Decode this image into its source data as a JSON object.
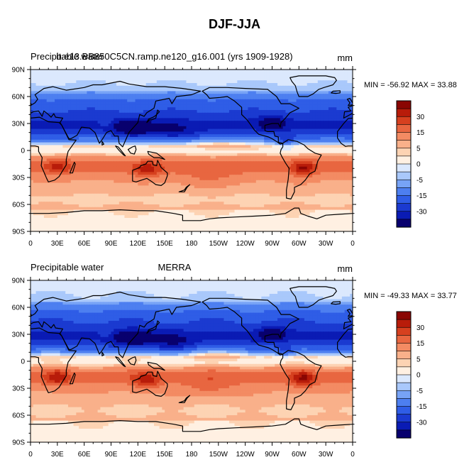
{
  "title": "DJF-JJA",
  "colors": {
    "levels": [
      -30,
      -25,
      -20,
      -15,
      -10,
      -5,
      -2.5,
      0,
      2.5,
      5,
      10,
      15,
      20,
      25,
      30,
      35
    ],
    "palette": [
      "#08006e",
      "#0a1bb4",
      "#1b3ad0",
      "#2f5de6",
      "#4d7ff0",
      "#77a3f6",
      "#a9c8fb",
      "#dbe8fd",
      "#fff0e2",
      "#fdd3b3",
      "#f9b08a",
      "#f38b63",
      "#e86640",
      "#d6401f",
      "#b81c0a",
      "#8a0603"
    ],
    "coast": "#000000"
  },
  "chart_data": [
    {
      "type": "heatmap",
      "panel": "top",
      "title_left": "Precipitable water",
      "title_center": "b.e13.BB850C5CN.ramp.ne120_g16.001 (yrs 1909-1928)",
      "title_right": "mm",
      "stats": "MIN = -56.92 MAX =  33.88",
      "min": -56.92,
      "max": 33.88,
      "xticks": [
        "0",
        "30E",
        "60E",
        "90E",
        "120E",
        "150E",
        "180",
        "150W",
        "120W",
        "90W",
        "60W",
        "30W",
        "0"
      ],
      "yticks": [
        "90N",
        "60N",
        "30N",
        "0",
        "30S",
        "60S",
        "90S"
      ],
      "xlim": [
        0,
        360
      ],
      "ylim": [
        -90,
        90
      ],
      "colorbar_labels": [
        "30",
        "15",
        "5",
        "0",
        "-5",
        "-15",
        "-30"
      ]
    },
    {
      "type": "heatmap",
      "panel": "bottom",
      "title_left": "Precipitable water",
      "title_center": "MERRA",
      "title_right": "mm",
      "stats": "MIN = -49.33 MAX =  33.77",
      "min": -49.33,
      "max": 33.77,
      "xticks": [
        "0",
        "30E",
        "60E",
        "90E",
        "120E",
        "150E",
        "180",
        "150W",
        "120W",
        "90W",
        "60W",
        "30W",
        "0"
      ],
      "yticks": [
        "90N",
        "60N",
        "30N",
        "0",
        "30S",
        "60S",
        "90S"
      ],
      "xlim": [
        0,
        360
      ],
      "ylim": [
        -90,
        90
      ],
      "colorbar_labels": [
        "30",
        "15",
        "5",
        "0",
        "-5",
        "-15",
        "-30"
      ]
    }
  ]
}
